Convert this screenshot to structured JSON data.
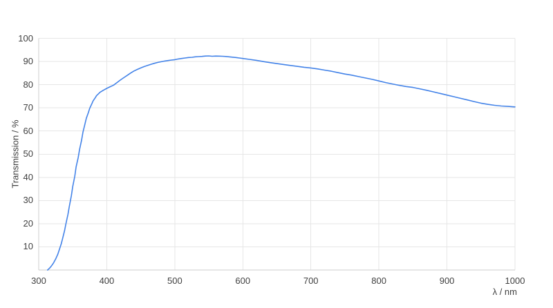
{
  "chart_data": {
    "type": "line",
    "title": "",
    "xlabel": "λ / nm",
    "ylabel": "Transmission / %",
    "xlim": [
      300,
      1000
    ],
    "ylim": [
      0,
      100
    ],
    "x_ticks": [
      300,
      400,
      500,
      600,
      700,
      800,
      900,
      1000
    ],
    "y_ticks": [
      10,
      20,
      30,
      40,
      50,
      60,
      70,
      80,
      90,
      100
    ],
    "grid": true,
    "legend": false,
    "colors": {
      "line": "#4282e8",
      "grid": "#e6e6e6",
      "axis": "#cccccc",
      "text": "#404040",
      "background": "#ffffff"
    },
    "series": [
      {
        "points": [
          [
            313,
            0
          ],
          [
            316,
            0.8
          ],
          [
            318,
            1.5
          ],
          [
            320,
            2.3
          ],
          [
            322,
            3.2
          ],
          [
            325,
            4.8
          ],
          [
            328,
            6.8
          ],
          [
            330,
            8.5
          ],
          [
            333,
            11.2
          ],
          [
            335,
            13.5
          ],
          [
            338,
            17
          ],
          [
            340,
            20
          ],
          [
            343,
            24
          ],
          [
            345,
            27.5
          ],
          [
            348,
            32
          ],
          [
            350,
            36
          ],
          [
            353,
            40.5
          ],
          [
            355,
            44.5
          ],
          [
            358,
            48.5
          ],
          [
            360,
            52
          ],
          [
            363,
            56
          ],
          [
            365,
            59.5
          ],
          [
            368,
            63
          ],
          [
            370,
            65.5
          ],
          [
            373,
            68
          ],
          [
            375,
            69.8
          ],
          [
            378,
            71.7
          ],
          [
            380,
            73
          ],
          [
            383,
            74.3
          ],
          [
            385,
            75.3
          ],
          [
            388,
            76.1
          ],
          [
            390,
            76.7
          ],
          [
            395,
            77.6
          ],
          [
            400,
            78.4
          ],
          [
            405,
            79.1
          ],
          [
            410,
            79.8
          ],
          [
            415,
            80.9
          ],
          [
            420,
            82
          ],
          [
            425,
            83
          ],
          [
            430,
            84
          ],
          [
            435,
            85
          ],
          [
            440,
            85.9
          ],
          [
            445,
            86.6
          ],
          [
            450,
            87.2
          ],
          [
            455,
            87.8
          ],
          [
            460,
            88.3
          ],
          [
            465,
            88.8
          ],
          [
            470,
            89.2
          ],
          [
            475,
            89.6
          ],
          [
            480,
            89.9
          ],
          [
            485,
            90.2
          ],
          [
            490,
            90.4
          ],
          [
            495,
            90.6
          ],
          [
            500,
            90.8
          ],
          [
            505,
            91.1
          ],
          [
            510,
            91.3
          ],
          [
            515,
            91.5
          ],
          [
            520,
            91.7
          ],
          [
            525,
            91.8
          ],
          [
            530,
            92
          ],
          [
            535,
            92.1
          ],
          [
            540,
            92.2
          ],
          [
            545,
            92.35
          ],
          [
            550,
            92.4
          ],
          [
            555,
            92.25
          ],
          [
            560,
            92.35
          ],
          [
            565,
            92.3
          ],
          [
            570,
            92.25
          ],
          [
            575,
            92.15
          ],
          [
            580,
            92
          ],
          [
            585,
            91.85
          ],
          [
            590,
            91.7
          ],
          [
            595,
            91.5
          ],
          [
            600,
            91.3
          ],
          [
            610,
            90.9
          ],
          [
            620,
            90.5
          ],
          [
            630,
            90
          ],
          [
            640,
            89.5
          ],
          [
            650,
            89.1
          ],
          [
            660,
            88.7
          ],
          [
            670,
            88.3
          ],
          [
            680,
            87.9
          ],
          [
            690,
            87.5
          ],
          [
            700,
            87.2
          ],
          [
            710,
            86.8
          ],
          [
            720,
            86.3
          ],
          [
            730,
            85.8
          ],
          [
            740,
            85.2
          ],
          [
            750,
            84.6
          ],
          [
            760,
            84.1
          ],
          [
            770,
            83.5
          ],
          [
            780,
            82.9
          ],
          [
            790,
            82.3
          ],
          [
            800,
            81.6
          ],
          [
            810,
            80.9
          ],
          [
            820,
            80.3
          ],
          [
            830,
            79.7
          ],
          [
            840,
            79.2
          ],
          [
            850,
            78.8
          ],
          [
            860,
            78.2
          ],
          [
            870,
            77.6
          ],
          [
            880,
            76.9
          ],
          [
            890,
            76.2
          ],
          [
            900,
            75.5
          ],
          [
            910,
            74.8
          ],
          [
            920,
            74.1
          ],
          [
            930,
            73.4
          ],
          [
            940,
            72.7
          ],
          [
            950,
            72
          ],
          [
            960,
            71.5
          ],
          [
            970,
            71.1
          ],
          [
            980,
            70.8
          ],
          [
            990,
            70.6
          ],
          [
            1000,
            70.4
          ]
        ]
      }
    ]
  }
}
